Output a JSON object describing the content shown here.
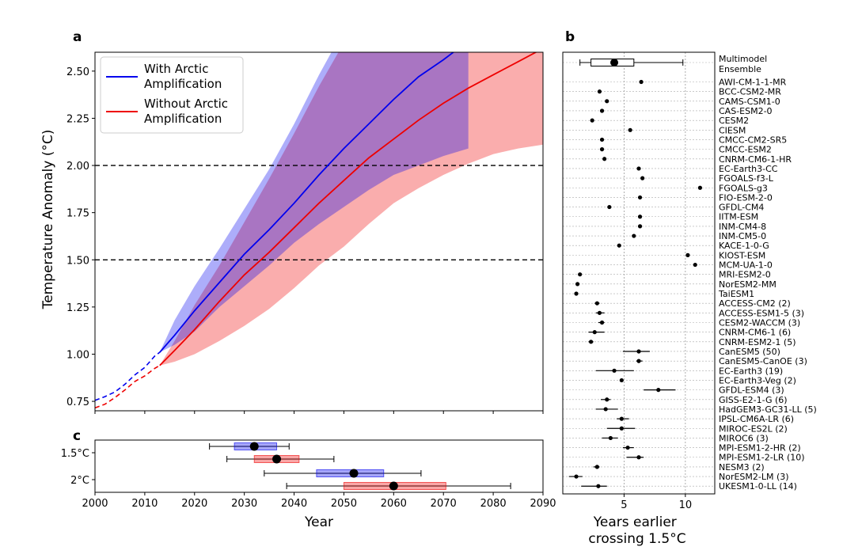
{
  "panels": {
    "a": "a",
    "b": "b",
    "c": "c"
  },
  "chart_data": [
    {
      "panel": "a",
      "type": "line",
      "ylabel": "Temperature Anomaly (°C)",
      "xlim": [
        2000,
        2090
      ],
      "ylim": [
        0.7,
        2.6
      ],
      "yticks": [
        "0.75",
        "1.00",
        "1.25",
        "1.50",
        "1.75",
        "2.00",
        "2.25",
        "2.50"
      ],
      "thresholds": [
        1.5,
        2.0
      ],
      "legend": {
        "placement": "top-left",
        "entries": [
          "With Arctic Amplification",
          "Without Arctic Amplification"
        ]
      },
      "colors": {
        "with": "#0000ee",
        "without": "#ee0000",
        "with_fill": "#a4a9ff",
        "without_fill": "#ffa2a2"
      },
      "historical": {
        "with": {
          "x": [
            2000,
            2002,
            2004,
            2006,
            2008,
            2010,
            2012,
            2013
          ],
          "y": [
            0.755,
            0.775,
            0.8,
            0.84,
            0.89,
            0.93,
            0.99,
            1.01
          ]
        },
        "without": {
          "x": [
            2000,
            2002,
            2004,
            2006,
            2008,
            2010,
            2012,
            2013
          ],
          "y": [
            0.715,
            0.735,
            0.77,
            0.81,
            0.855,
            0.885,
            0.925,
            0.94
          ]
        }
      },
      "series": [
        {
          "name": "With Arctic Amplification",
          "x": [
            2013,
            2016,
            2020,
            2025,
            2030,
            2035,
            2040,
            2045,
            2050,
            2055,
            2060,
            2065,
            2070,
            2075
          ],
          "y": [
            1.01,
            1.1,
            1.23,
            1.38,
            1.53,
            1.66,
            1.8,
            1.95,
            2.09,
            2.22,
            2.35,
            2.47,
            2.56,
            2.66
          ],
          "lower": [
            1.01,
            1.05,
            1.12,
            1.25,
            1.36,
            1.47,
            1.59,
            1.69,
            1.78,
            1.87,
            1.95,
            2.0,
            2.05,
            2.09
          ],
          "upper": [
            1.01,
            1.18,
            1.36,
            1.56,
            1.77,
            1.98,
            2.22,
            2.48,
            2.72,
            2.9,
            3.0,
            3.1,
            3.2,
            3.3
          ]
        },
        {
          "name": "Without Arctic Amplification",
          "x": [
            2013,
            2016,
            2020,
            2025,
            2030,
            2035,
            2040,
            2045,
            2050,
            2055,
            2060,
            2065,
            2070,
            2075,
            2080,
            2085,
            2090
          ],
          "y": [
            0.94,
            1.02,
            1.13,
            1.28,
            1.42,
            1.54,
            1.67,
            1.8,
            1.92,
            2.04,
            2.14,
            2.24,
            2.33,
            2.41,
            2.48,
            2.55,
            2.62
          ],
          "lower": [
            0.94,
            0.96,
            1.0,
            1.07,
            1.15,
            1.24,
            1.35,
            1.47,
            1.57,
            1.69,
            1.8,
            1.88,
            1.95,
            2.01,
            2.06,
            2.09,
            2.11
          ],
          "upper": [
            0.94,
            1.07,
            1.26,
            1.47,
            1.7,
            1.93,
            2.17,
            2.42,
            2.65,
            2.86,
            3.0,
            3.1,
            3.2,
            3.3,
            3.4,
            3.5,
            3.6
          ]
        }
      ]
    },
    {
      "panel": "c",
      "type": "box",
      "xlabel": "Year",
      "xlim": [
        2000,
        2090
      ],
      "xticks": [
        "2000",
        "2010",
        "2020",
        "2030",
        "2040",
        "2050",
        "2060",
        "2070",
        "2080",
        "2090"
      ],
      "categories": [
        "1.5°C",
        "2°C"
      ],
      "boxes": [
        {
          "cat": "1.5°C",
          "series": "With Arctic Amplification",
          "wlo": 2023,
          "q1": 2028,
          "median": 2032,
          "q3": 2036.5,
          "whi": 2039
        },
        {
          "cat": "1.5°C",
          "series": "Without Arctic Amplification",
          "wlo": 2026.5,
          "q1": 2032,
          "median": 2036.5,
          "q3": 2041,
          "whi": 2048
        },
        {
          "cat": "2°C",
          "series": "With Arctic Amplification",
          "wlo": 2034,
          "q1": 2044.5,
          "median": 2052,
          "q3": 2058,
          "whi": 2065.5
        },
        {
          "cat": "2°C",
          "series": "Without Arctic Amplification",
          "wlo": 2038.5,
          "q1": 2050,
          "median": 2060,
          "q3": 2070.5,
          "whi": 2083.5
        }
      ]
    },
    {
      "panel": "b",
      "type": "scatter",
      "xlabel": "Years earlier crossing 1.5°C",
      "xlim": [
        0,
        12.4
      ],
      "xticks": [
        "5",
        "10"
      ],
      "ensemble": {
        "label": "Multimodel Ensemble",
        "wlo": 1.4,
        "q1": 2.3,
        "median": 4.2,
        "q3": 5.8,
        "whi": 9.8
      },
      "models": [
        {
          "name": "AWI-CM-1-1-MR",
          "value": 6.4
        },
        {
          "name": "BCC-CSM2-MR",
          "value": 3.0
        },
        {
          "name": "CAMS-CSM1-0",
          "value": 3.6
        },
        {
          "name": "CAS-ESM2-0",
          "value": 3.2
        },
        {
          "name": "CESM2",
          "value": 2.4
        },
        {
          "name": "CIESM",
          "value": 5.5
        },
        {
          "name": "CMCC-CM2-SR5",
          "value": 3.2
        },
        {
          "name": "CMCC-ESM2",
          "value": 3.2
        },
        {
          "name": "CNRM-CM6-1-HR",
          "value": 3.4
        },
        {
          "name": "EC-Earth3-CC",
          "value": 6.2
        },
        {
          "name": "FGOALS-f3-L",
          "value": 6.5
        },
        {
          "name": "FGOALS-g3",
          "value": 11.2
        },
        {
          "name": "FIO-ESM-2-0",
          "value": 6.3
        },
        {
          "name": "GFDL-CM4",
          "value": 3.8
        },
        {
          "name": "IITM-ESM",
          "value": 6.3
        },
        {
          "name": "INM-CM4-8",
          "value": 6.3
        },
        {
          "name": "INM-CM5-0",
          "value": 5.8
        },
        {
          "name": "KACE-1-0-G",
          "value": 4.6
        },
        {
          "name": "KIOST-ESM",
          "value": 10.2
        },
        {
          "name": "MCM-UA-1-0",
          "value": 10.8
        },
        {
          "name": "MRI-ESM2-0",
          "value": 1.4
        },
        {
          "name": "NorESM2-MM",
          "value": 1.2
        },
        {
          "name": "TaiESM1",
          "value": 1.1
        },
        {
          "name": "ACCESS-CM2 (2)",
          "value": 2.8,
          "err": [
            2.6,
            3.0
          ]
        },
        {
          "name": "ACCESS-ESM1-5 (3)",
          "value": 3.0,
          "err": [
            2.7,
            3.4
          ]
        },
        {
          "name": "CESM2-WACCM (3)",
          "value": 3.2,
          "err": [
            2.9,
            3.4
          ]
        },
        {
          "name": "CNRM-CM6-1 (6)",
          "value": 2.6,
          "err": [
            2.1,
            3.4
          ]
        },
        {
          "name": "CNRM-ESM2-1 (5)",
          "value": 2.3,
          "err": [
            2.1,
            2.5
          ]
        },
        {
          "name": "CanESM5 (50)",
          "value": 6.2,
          "err": [
            4.9,
            7.1
          ]
        },
        {
          "name": "CanESM5-CanOE (3)",
          "value": 6.2,
          "err": [
            6.0,
            6.5
          ]
        },
        {
          "name": "EC-Earth3 (19)",
          "value": 4.2,
          "err": [
            2.7,
            5.8
          ]
        },
        {
          "name": "EC-Earth3-Veg (2)",
          "value": 4.8
        },
        {
          "name": "GFDL-ESM4 (3)",
          "value": 7.8,
          "err": [
            6.6,
            9.2
          ]
        },
        {
          "name": "GISS-E2-1-G (6)",
          "value": 3.6,
          "err": [
            3.1,
            3.9
          ]
        },
        {
          "name": "HadGEM3-GC31-LL (5)",
          "value": 3.5,
          "err": [
            2.7,
            4.5
          ]
        },
        {
          "name": "IPSL-CM6A-LR (6)",
          "value": 4.8,
          "err": [
            4.4,
            5.4
          ]
        },
        {
          "name": "MIROC-ES2L (2)",
          "value": 4.8,
          "err": [
            3.6,
            5.9
          ]
        },
        {
          "name": "MIROC6 (3)",
          "value": 3.9,
          "err": [
            3.2,
            4.5
          ]
        },
        {
          "name": "MPI-ESM1-2-HR (2)",
          "value": 5.3,
          "err": [
            4.9,
            5.8
          ]
        },
        {
          "name": "MPI-ESM1-2-LR (10)",
          "value": 6.2,
          "err": [
            5.2,
            6.6
          ]
        },
        {
          "name": "NESM3 (2)",
          "value": 2.8,
          "err": [
            2.5,
            3.0
          ]
        },
        {
          "name": "NorESM2-LM (3)",
          "value": 1.1,
          "err": [
            0.5,
            1.6
          ]
        },
        {
          "name": "UKESM1-0-LL (14)",
          "value": 2.9,
          "err": [
            1.5,
            3.6
          ]
        }
      ]
    }
  ]
}
